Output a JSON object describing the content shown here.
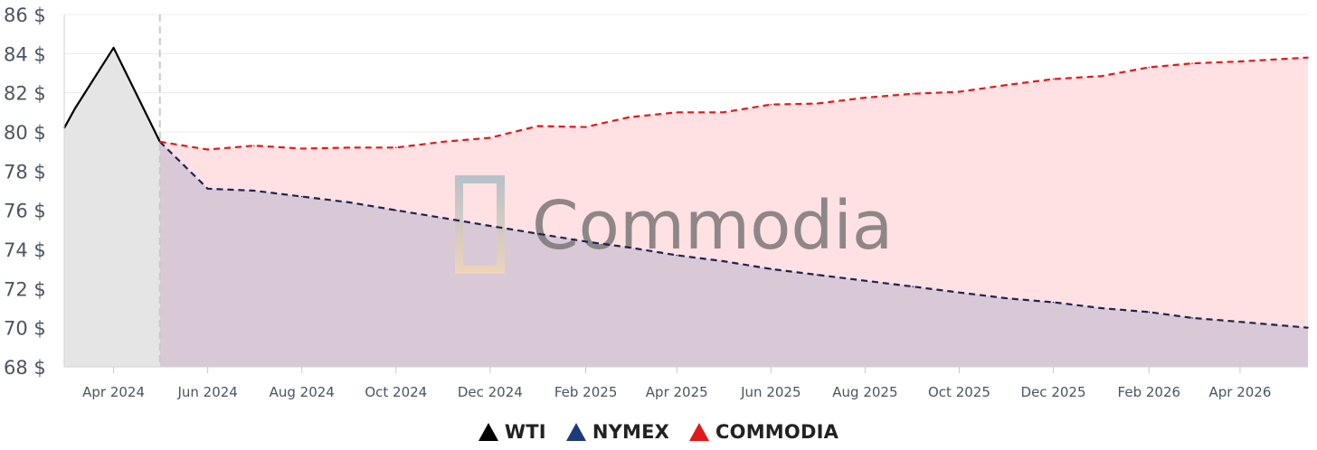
{
  "chart_data": {
    "type": "line",
    "title": "",
    "xlabel": "",
    "ylabel": "",
    "ylim": [
      68,
      86
    ],
    "y_ticks": [
      68,
      70,
      72,
      74,
      76,
      78,
      80,
      82,
      84,
      86
    ],
    "y_tick_suffix": " $",
    "x_ticks": [
      {
        "t": "2024-04-01",
        "label": "Apr 2024"
      },
      {
        "t": "2024-06-01",
        "label": "Jun 2024"
      },
      {
        "t": "2024-08-01",
        "label": "Aug 2024"
      },
      {
        "t": "2024-10-01",
        "label": "Oct 2024"
      },
      {
        "t": "2024-12-01",
        "label": "Dec 2024"
      },
      {
        "t": "2025-02-01",
        "label": "Feb 2025"
      },
      {
        "t": "2025-04-01",
        "label": "Apr 2025"
      },
      {
        "t": "2025-06-01",
        "label": "Jun 2025"
      },
      {
        "t": "2025-08-01",
        "label": "Aug 2025"
      },
      {
        "t": "2025-10-01",
        "label": "Oct 2025"
      },
      {
        "t": "2025-12-01",
        "label": "Dec 2025"
      },
      {
        "t": "2026-02-01",
        "label": "Feb 2026"
      },
      {
        "t": "2026-04-01",
        "label": "Apr 2026"
      }
    ],
    "x_range": [
      "2024-02-29",
      "2026-05-15"
    ],
    "forecast_start": "2024-05-01",
    "grid": true,
    "legend_position": "bottom-center",
    "watermark": "Commodia",
    "series": [
      {
        "name": "WTI",
        "color": "#000000",
        "line_style": "solid",
        "fill": "#e5e5e5",
        "points": [
          {
            "x": "2024-02-29",
            "y": 80.2
          },
          {
            "x": "2024-03-07",
            "y": 81.2
          },
          {
            "x": "2024-04-01",
            "y": 84.3
          },
          {
            "x": "2024-05-01",
            "y": 79.5
          }
        ]
      },
      {
        "name": "NYMEX",
        "color": "#1e2350",
        "line_style": "dashed",
        "fill": "#d9c9d6",
        "points": [
          {
            "x": "2024-05-01",
            "y": 79.5
          },
          {
            "x": "2024-06-01",
            "y": 77.1
          },
          {
            "x": "2024-07-01",
            "y": 77.0
          },
          {
            "x": "2024-08-01",
            "y": 76.7
          },
          {
            "x": "2024-09-01",
            "y": 76.4
          },
          {
            "x": "2024-10-01",
            "y": 76.0
          },
          {
            "x": "2024-11-01",
            "y": 75.6
          },
          {
            "x": "2024-12-01",
            "y": 75.2
          },
          {
            "x": "2025-01-01",
            "y": 74.8
          },
          {
            "x": "2025-02-01",
            "y": 74.4
          },
          {
            "x": "2025-03-01",
            "y": 74.1
          },
          {
            "x": "2025-04-01",
            "y": 73.7
          },
          {
            "x": "2025-05-01",
            "y": 73.4
          },
          {
            "x": "2025-06-01",
            "y": 73.0
          },
          {
            "x": "2025-07-01",
            "y": 72.7
          },
          {
            "x": "2025-08-01",
            "y": 72.4
          },
          {
            "x": "2025-09-01",
            "y": 72.1
          },
          {
            "x": "2025-10-01",
            "y": 71.8
          },
          {
            "x": "2025-11-01",
            "y": 71.5
          },
          {
            "x": "2025-12-01",
            "y": 71.3
          },
          {
            "x": "2026-01-01",
            "y": 71.0
          },
          {
            "x": "2026-02-01",
            "y": 70.8
          },
          {
            "x": "2026-03-01",
            "y": 70.5
          },
          {
            "x": "2026-04-01",
            "y": 70.3
          },
          {
            "x": "2026-05-15",
            "y": 70.0
          }
        ]
      },
      {
        "name": "COMMODIA",
        "color": "#e01a1a",
        "line_style": "dashed",
        "fill": "#ffe1e3",
        "points": [
          {
            "x": "2024-05-01",
            "y": 79.5
          },
          {
            "x": "2024-06-01",
            "y": 79.1
          },
          {
            "x": "2024-07-01",
            "y": 79.3
          },
          {
            "x": "2024-08-01",
            "y": 79.15
          },
          {
            "x": "2024-09-01",
            "y": 79.2
          },
          {
            "x": "2024-10-01",
            "y": 79.2
          },
          {
            "x": "2024-11-01",
            "y": 79.5
          },
          {
            "x": "2024-12-01",
            "y": 79.7
          },
          {
            "x": "2025-01-01",
            "y": 80.3
          },
          {
            "x": "2025-02-01",
            "y": 80.25
          },
          {
            "x": "2025-03-01",
            "y": 80.75
          },
          {
            "x": "2025-04-01",
            "y": 81.0
          },
          {
            "x": "2025-05-01",
            "y": 81.0
          },
          {
            "x": "2025-06-01",
            "y": 81.4
          },
          {
            "x": "2025-07-01",
            "y": 81.45
          },
          {
            "x": "2025-08-01",
            "y": 81.75
          },
          {
            "x": "2025-09-01",
            "y": 81.95
          },
          {
            "x": "2025-10-01",
            "y": 82.05
          },
          {
            "x": "2025-11-01",
            "y": 82.4
          },
          {
            "x": "2025-12-01",
            "y": 82.7
          },
          {
            "x": "2026-01-01",
            "y": 82.85
          },
          {
            "x": "2026-02-01",
            "y": 83.3
          },
          {
            "x": "2026-03-01",
            "y": 83.5
          },
          {
            "x": "2026-04-01",
            "y": 83.6
          },
          {
            "x": "2026-05-15",
            "y": 83.8
          }
        ]
      }
    ]
  }
}
